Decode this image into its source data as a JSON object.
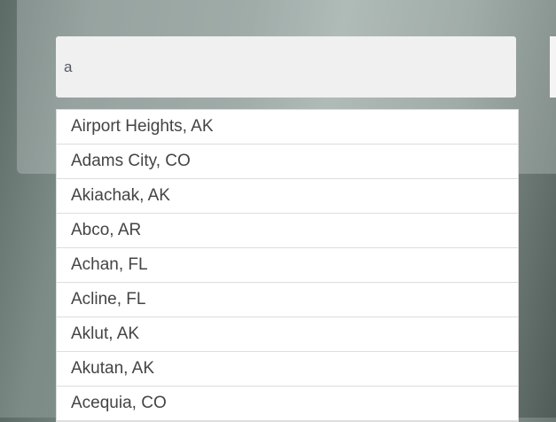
{
  "search": {
    "value": "a"
  },
  "suggestions": [
    "Airport Heights, AK",
    "Adams City, CO",
    "Akiachak, AK",
    "Abco, AR",
    "Achan, FL",
    "Acline, FL",
    "Aklut, AK",
    "Akutan, AK",
    "Acequia, CO"
  ]
}
